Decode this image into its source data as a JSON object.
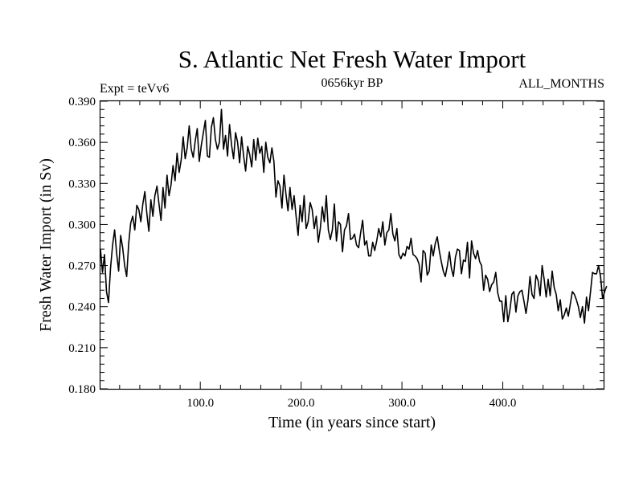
{
  "chart_data": {
    "type": "line",
    "title": "S. Atlantic Net Fresh Water Import",
    "left_label": "Expt = teVv6",
    "center_label": "0656kyr BP",
    "right_label": "ALL_MONTHS",
    "xlabel": "Time (in years since start)",
    "ylabel": "Fresh Water Import (in Sv)",
    "xlim": [
      1,
      500
    ],
    "ylim": [
      0.18,
      0.39
    ],
    "x_ticks": [
      100,
      200,
      300,
      400
    ],
    "x_tick_labels": [
      "100.0",
      "200.0",
      "300.0",
      "400.0"
    ],
    "y_ticks": [
      0.18,
      0.21,
      0.24,
      0.27,
      0.3,
      0.33,
      0.36,
      0.39
    ],
    "y_tick_labels": [
      "0.180",
      "0.210",
      "0.240",
      "0.270",
      "0.300",
      "0.330",
      "0.360",
      "0.390"
    ],
    "line_color": "#000000",
    "series": [
      {
        "name": "Fresh Water Import",
        "x_start": 1,
        "x_step": 2,
        "values": [
          0.282,
          0.265,
          0.278,
          0.251,
          0.243,
          0.268,
          0.285,
          0.296,
          0.279,
          0.266,
          0.292,
          0.283,
          0.27,
          0.262,
          0.286,
          0.301,
          0.306,
          0.296,
          0.314,
          0.311,
          0.302,
          0.315,
          0.324,
          0.308,
          0.295,
          0.318,
          0.306,
          0.321,
          0.328,
          0.315,
          0.303,
          0.327,
          0.312,
          0.336,
          0.321,
          0.329,
          0.343,
          0.332,
          0.352,
          0.338,
          0.347,
          0.364,
          0.348,
          0.356,
          0.372,
          0.355,
          0.349,
          0.361,
          0.37,
          0.346,
          0.358,
          0.367,
          0.376,
          0.35,
          0.349,
          0.371,
          0.378,
          0.362,
          0.355,
          0.36,
          0.384,
          0.355,
          0.365,
          0.35,
          0.373,
          0.358,
          0.348,
          0.367,
          0.36,
          0.345,
          0.364,
          0.35,
          0.339,
          0.357,
          0.351,
          0.342,
          0.362,
          0.347,
          0.363,
          0.352,
          0.357,
          0.338,
          0.36,
          0.349,
          0.345,
          0.356,
          0.346,
          0.32,
          0.332,
          0.328,
          0.312,
          0.336,
          0.322,
          0.31,
          0.327,
          0.311,
          0.321,
          0.306,
          0.292,
          0.314,
          0.302,
          0.321,
          0.297,
          0.302,
          0.316,
          0.311,
          0.297,
          0.306,
          0.287,
          0.297,
          0.313,
          0.302,
          0.321,
          0.296,
          0.289,
          0.296,
          0.315,
          0.288,
          0.302,
          0.3,
          0.28,
          0.296,
          0.299,
          0.308,
          0.289,
          0.29,
          0.293,
          0.285,
          0.283,
          0.294,
          0.303,
          0.285,
          0.288,
          0.277,
          0.277,
          0.287,
          0.281,
          0.288,
          0.297,
          0.291,
          0.302,
          0.285,
          0.294,
          0.296,
          0.308,
          0.293,
          0.288,
          0.297,
          0.278,
          0.275,
          0.279,
          0.277,
          0.284,
          0.282,
          0.29,
          0.278,
          0.277,
          0.275,
          0.271,
          0.258,
          0.281,
          0.279,
          0.263,
          0.266,
          0.285,
          0.277,
          0.286,
          0.291,
          0.281,
          0.273,
          0.266,
          0.262,
          0.27,
          0.28,
          0.268,
          0.262,
          0.276,
          0.282,
          0.281,
          0.264,
          0.274,
          0.273,
          0.287,
          0.261,
          0.288,
          0.279,
          0.275,
          0.281,
          0.273,
          0.27,
          0.252,
          0.263,
          0.26,
          0.251,
          0.256,
          0.258,
          0.265,
          0.25,
          0.244,
          0.244,
          0.229,
          0.248,
          0.229,
          0.237,
          0.249,
          0.251,
          0.236,
          0.248,
          0.251,
          0.252,
          0.244,
          0.235,
          0.245,
          0.262,
          0.249,
          0.246,
          0.263,
          0.259,
          0.248,
          0.27,
          0.26,
          0.247,
          0.26,
          0.248,
          0.266,
          0.254,
          0.249,
          0.237,
          0.245,
          0.231,
          0.234,
          0.239,
          0.233,
          0.242,
          0.251,
          0.249,
          0.245,
          0.24,
          0.232,
          0.24,
          0.228,
          0.247,
          0.237,
          0.251,
          0.265,
          0.264,
          0.264,
          0.27,
          0.262,
          0.246,
          0.251,
          0.255
        ]
      }
    ]
  }
}
